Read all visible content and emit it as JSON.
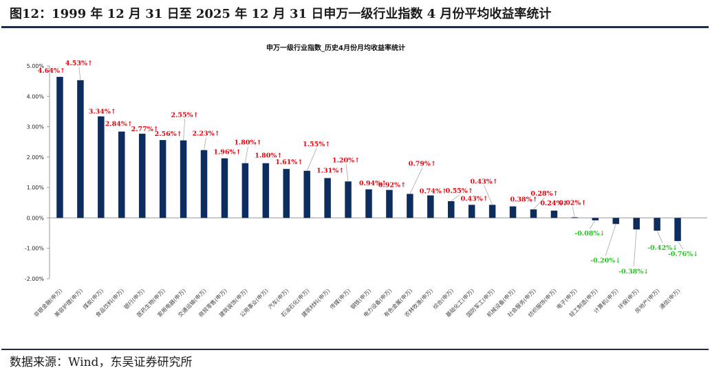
{
  "figure": {
    "title": "图12：1999 年 12 月 31 日至 2025 年 12 月 31 日申万一级行业指数 4 月份平均收益率统计",
    "source": "数据来源：Wind，东吴证券研究所"
  },
  "colors": {
    "bar": "#0d2d5e",
    "positive_label": "#e8000b",
    "negative_label": "#22c41e",
    "rule": "#1f2a44"
  },
  "chart_data": {
    "type": "bar",
    "title": "申万一级行业指数_历史4月份月均收益率统计",
    "xlabel": "",
    "ylabel": "",
    "ylim": [
      -2.0,
      5.0
    ],
    "yticks": [
      "5.00%",
      "4.00%",
      "3.00%",
      "2.00%",
      "1.00%",
      "0.00%",
      "-1.00%",
      "-2.00%"
    ],
    "ytick_values": [
      5,
      4,
      3,
      2,
      1,
      0,
      -1,
      -2
    ],
    "grid": false,
    "legend": "none",
    "categories": [
      "非银金融(申万)",
      "美容护理(申万)",
      "煤炭(申万)",
      "食品饮料(申万)",
      "银行(申万)",
      "医药生物(申万)",
      "家用电器(申万)",
      "交通运输(申万)",
      "商贸零售(申万)",
      "建筑装饰(申万)",
      "公用事业(申万)",
      "汽车(申万)",
      "石油石化(申万)",
      "建筑材料(申万)",
      "传媒(申万)",
      "钢铁(申万)",
      "电力设备(申万)",
      "有色金属(申万)",
      "农林牧渔(申万)",
      "综合(申万)",
      "基础化工(申万)",
      "国防军工(申万)",
      "机械设备(申万)",
      "社会服务(申万)",
      "纺织服饰(申万)",
      "电子(申万)",
      "轻工制造(申万)",
      "计算机(申万)",
      "环保(申万)",
      "房地产(申万)",
      "通信(申万)"
    ],
    "values": [
      4.64,
      4.53,
      3.34,
      2.84,
      2.77,
      2.56,
      2.55,
      2.23,
      1.96,
      1.8,
      1.8,
      1.61,
      1.55,
      1.31,
      1.2,
      0.94,
      0.92,
      0.79,
      0.74,
      0.55,
      0.43,
      0.43,
      0.38,
      0.28,
      0.24,
      0.02,
      -0.08,
      -0.2,
      -0.38,
      -0.42,
      -0.76
    ],
    "data_labels": [
      "4.64%↑",
      "4.53%↑",
      "3.34%↑",
      "2.84%↑",
      "2.77%↑",
      "2.56%↑",
      "2.55%↑",
      "2.23%↑",
      "1.96%↑",
      "1.80%↑",
      "1.80%↑",
      "1.61%↑",
      "1.55%↑",
      "1.31%↑",
      "1.20%↑",
      "0.94%↑",
      "0.92%↑",
      "0.79%↑",
      "0.74%↑",
      "0.55%↑",
      "0.43%↑",
      "0.43%↑",
      "0.38%↑",
      "0.28%↑",
      "0.24%↑",
      "0.02%↑",
      "-0.08%↓",
      "-0.20%↓",
      "-0.38%↓",
      "-0.42%↓",
      "-0.76%↓"
    ]
  }
}
